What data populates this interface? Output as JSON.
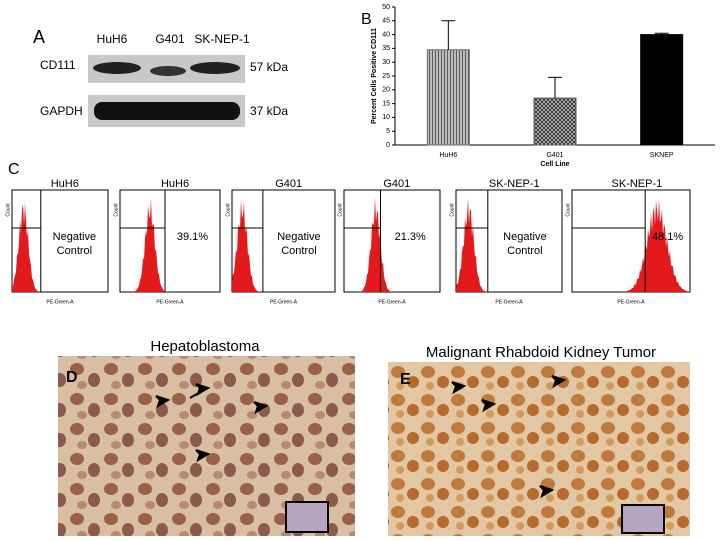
{
  "panel_labels": {
    "a": "A",
    "b": "B",
    "c": "C",
    "d": "D",
    "e": "E"
  },
  "blot": {
    "lanes": [
      "HuH6",
      "G401",
      "SK-NEP-1"
    ],
    "rows": [
      {
        "label": "CD111",
        "size": "57 kDa"
      },
      {
        "label": "GAPDH",
        "size": "37 kDa"
      }
    ]
  },
  "chart_data": {
    "type": "bar",
    "y_label": "Percent Cells Positive CD111",
    "x_label": "Cell Line",
    "categories": [
      "HuH6",
      "G401",
      "SKNEP"
    ],
    "values": [
      34.5,
      17,
      40
    ],
    "errors": [
      10.5,
      7.5,
      0.5
    ],
    "colors": [
      "#6e6e6e",
      "#5a5a5a",
      "#000000"
    ],
    "hatch": [
      "lines",
      "cross",
      "none"
    ],
    "ylim": [
      0,
      50
    ],
    "yticks": [
      0,
      5,
      10,
      15,
      20,
      25,
      30,
      35,
      40,
      45,
      50
    ]
  },
  "flow": {
    "x_label": "PE-Green-A",
    "y_label": "Count",
    "panels": [
      {
        "title": "HuH6",
        "note": "Negative Control"
      },
      {
        "title": "HuH6",
        "note": "39.1%"
      },
      {
        "title": "G401",
        "note": "Negative Control"
      },
      {
        "title": "G401",
        "note": "21.3%"
      },
      {
        "title": "SK-NEP-1",
        "note": "Negative Control"
      },
      {
        "title": "SK-NEP-1",
        "note": "48.1%"
      }
    ]
  },
  "histology": [
    {
      "title": "Hepatoblastoma"
    },
    {
      "title": "Malignant Rhabdoid Kidney Tumor"
    }
  ]
}
